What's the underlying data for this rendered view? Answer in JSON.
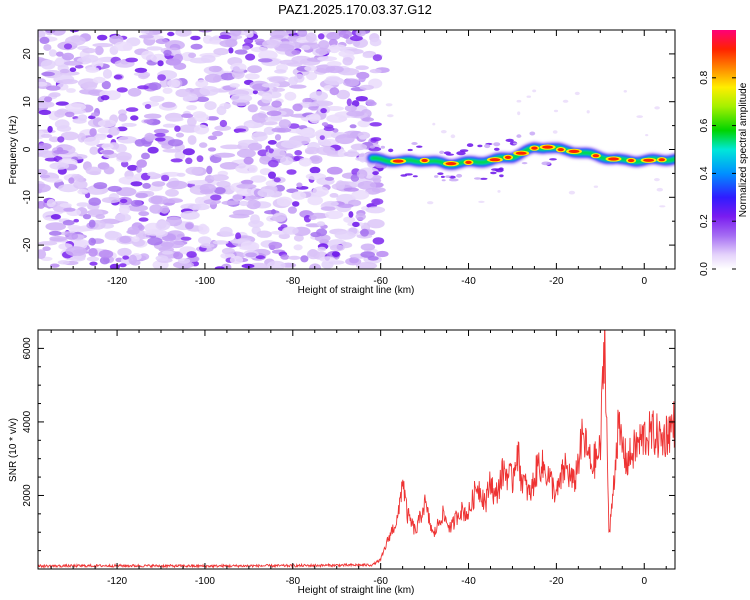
{
  "title": "PAZ1.2025.170.03.37.G12",
  "chart_data": [
    {
      "type": "heatmap",
      "xlabel": "Height of straight line (km)",
      "ylabel": "Frequency (Hz)",
      "xlim": [
        -138,
        7
      ],
      "ylim": [
        -25,
        25
      ],
      "xticks": [
        -120,
        -100,
        -80,
        -60,
        -40,
        -20,
        0
      ],
      "yticks": [
        -20,
        -10,
        0,
        10,
        20
      ],
      "noise_region_x": [
        -138,
        -60
      ],
      "signal_path": {
        "x": [
          -62,
          -58,
          -55,
          -50,
          -45,
          -40,
          -35,
          -30,
          -25,
          -22,
          -18,
          -15,
          -10,
          -5,
          0,
          7
        ],
        "freq": [
          -2,
          -2.3,
          -2.5,
          -2.3,
          -3,
          -2.7,
          -2.3,
          -1.5,
          0.3,
          0.5,
          -0.2,
          -0.5,
          -1.5,
          -2.3,
          -2.3,
          -2
        ]
      },
      "colorbar": {
        "label": "Normalized spectral amplitude",
        "range": [
          0,
          1
        ],
        "ticks": [
          "0.0",
          "0.2",
          "0.4",
          "0.6",
          "0.8"
        ]
      }
    },
    {
      "type": "line",
      "xlabel": "Height of straight line (km)",
      "ylabel": "SNR (10 * v/v)",
      "xlim": [
        -138,
        7
      ],
      "ylim": [
        0,
        6500
      ],
      "xticks": [
        -120,
        -100,
        -80,
        -60,
        -40,
        -20,
        0
      ],
      "yticks": [
        2000,
        4000,
        6000
      ],
      "grid": false,
      "color": "#ee3333",
      "series": [
        {
          "x": [
            -138,
            -120,
            -100,
            -80,
            -62,
            -60,
            -58,
            -56,
            -55,
            -54,
            -52,
            -50,
            -48,
            -46,
            -44,
            -42,
            -40,
            -38,
            -36,
            -35,
            -34,
            -32,
            -30,
            -29,
            -28,
            -26,
            -24,
            -22,
            -20,
            -18,
            -16,
            -14,
            -12,
            -10,
            -9,
            -8,
            -6,
            -4,
            -2,
            0,
            2,
            4,
            7
          ],
          "y": [
            80,
            90,
            80,
            90,
            110,
            250,
            900,
            1400,
            2500,
            1500,
            1000,
            1800,
            900,
            1500,
            1100,
            1600,
            1500,
            2300,
            1800,
            2500,
            1900,
            2700,
            2400,
            3300,
            2500,
            2000,
            2900,
            2600,
            2000,
            2800,
            2300,
            3600,
            2800,
            3200,
            6500,
            800,
            3800,
            2900,
            3300,
            3600,
            3700,
            3500,
            4000
          ]
        }
      ]
    }
  ]
}
